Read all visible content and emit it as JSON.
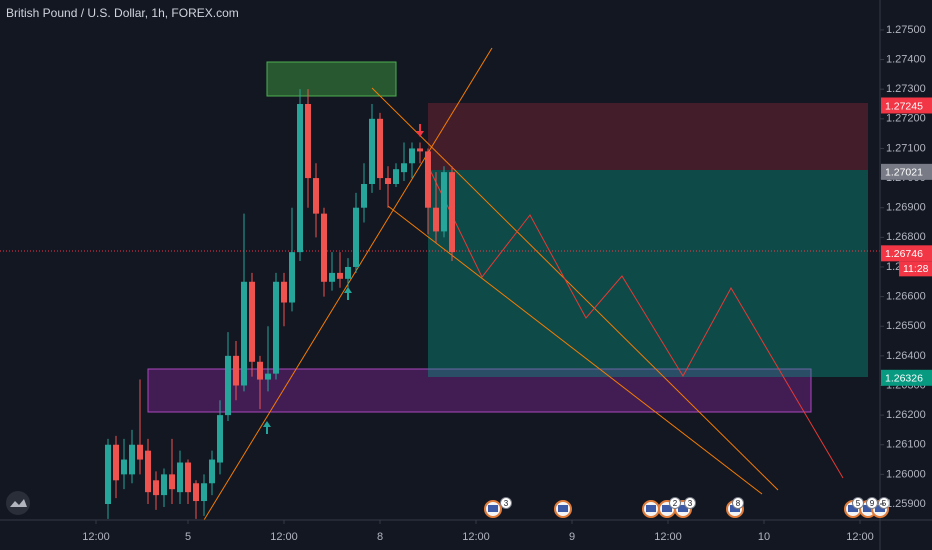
{
  "chart_data": {
    "type": "candlestick",
    "title": "British Pound / U.S. Dollar, 1h, FOREX.com",
    "up_color": "#26a69a",
    "down_color": "#ef5350",
    "x": [
      1.5,
      2.5,
      3.5,
      4.5,
      5.5,
      6.5,
      7.5,
      8.5,
      9.5,
      10.5,
      11.5,
      12.5,
      13.5,
      14.5,
      15.5,
      16.5,
      17.5,
      18.5,
      19.5,
      20.5,
      21.5,
      22.5,
      23.5,
      24.5,
      25.5,
      26.5,
      27.5,
      28.5,
      29.5,
      30.5,
      31.5,
      32.5,
      33.5,
      34.5,
      35.5,
      36.5,
      37.5,
      38.5,
      39.5,
      40.5,
      41.5,
      42.5,
      43.5,
      44.5
    ],
    "open": [
      1.259,
      1.261,
      1.26,
      1.26,
      1.261,
      1.2608,
      1.2598,
      1.2593,
      1.26,
      1.2594,
      1.2604,
      1.2597,
      1.2591,
      1.2597,
      1.2604,
      1.262,
      1.264,
      1.263,
      1.2665,
      1.2638,
      1.2632,
      1.2634,
      1.2665,
      1.2658,
      1.2675,
      1.2725,
      1.27,
      1.2688,
      1.2665,
      1.2668,
      1.2666,
      1.267,
      1.269,
      1.2698,
      1.272,
      1.27,
      1.2698,
      1.2702,
      1.2705,
      1.271,
      1.2709,
      1.269,
      1.2682,
      1.2702
    ],
    "high": [
      1.2612,
      1.2613,
      1.2612,
      1.2615,
      1.2632,
      1.2612,
      1.2601,
      1.2602,
      1.2612,
      1.2608,
      1.2605,
      1.2598,
      1.26,
      1.2608,
      1.2625,
      1.2648,
      1.2645,
      1.2688,
      1.2668,
      1.264,
      1.265,
      1.2668,
      1.2668,
      1.269,
      1.273,
      1.273,
      1.2705,
      1.269,
      1.2675,
      1.2675,
      1.2673,
      1.2695,
      1.2705,
      1.2725,
      1.2722,
      1.2704,
      1.2705,
      1.2712,
      1.2712,
      1.2712,
      1.271,
      1.2702,
      1.2704,
      1.2704
    ],
    "low": [
      1.2585,
      1.2592,
      1.2595,
      1.2597,
      1.26,
      1.259,
      1.2588,
      1.2589,
      1.259,
      1.259,
      1.259,
      1.2585,
      1.2586,
      1.2593,
      1.26,
      1.2618,
      1.2625,
      1.2628,
      1.2633,
      1.2622,
      1.2628,
      1.2632,
      1.265,
      1.2655,
      1.2672,
      1.269,
      1.268,
      1.266,
      1.2662,
      1.2663,
      1.2663,
      1.2668,
      1.2685,
      1.2695,
      1.2696,
      1.269,
      1.2697,
      1.2699,
      1.27,
      1.2705,
      1.2681,
      1.2678,
      1.268,
      1.2672
    ],
    "close": [
      1.261,
      1.2598,
      1.2605,
      1.261,
      1.2605,
      1.2594,
      1.2593,
      1.26,
      1.2595,
      1.2604,
      1.2594,
      1.2591,
      1.2597,
      1.2605,
      1.262,
      1.264,
      1.263,
      1.2665,
      1.2638,
      1.2632,
      1.2634,
      1.2665,
      1.2658,
      1.2675,
      1.2725,
      1.27,
      1.2688,
      1.2665,
      1.2668,
      1.2666,
      1.267,
      1.269,
      1.2698,
      1.272,
      1.27,
      1.2698,
      1.2703,
      1.2705,
      1.271,
      1.2709,
      1.269,
      1.2682,
      1.2702,
      1.2675
    ],
    "xlim": [
      -12,
      98
    ],
    "xticks": [
      {
        "value": 0,
        "label": "12:00"
      },
      {
        "value": 11.5,
        "label": "5"
      },
      {
        "value": 23.5,
        "label": "12:00"
      },
      {
        "value": 35.5,
        "label": "8"
      },
      {
        "value": 47.5,
        "label": "12:00"
      },
      {
        "value": 59.5,
        "label": "9"
      },
      {
        "value": 71.5,
        "label": "12:00"
      },
      {
        "value": 83.5,
        "label": "10"
      },
      {
        "value": 95.5,
        "label": "12:00"
      }
    ],
    "ylim": [
      1.25846,
      1.27601
    ],
    "yticks": [
      {
        "value": 1.259,
        "label": "1.25900"
      },
      {
        "value": 1.26,
        "label": "1.26000"
      },
      {
        "value": 1.261,
        "label": "1.26100"
      },
      {
        "value": 1.262,
        "label": "1.26200"
      },
      {
        "value": 1.263,
        "label": "1.26300"
      },
      {
        "value": 1.264,
        "label": "1.26400"
      },
      {
        "value": 1.265,
        "label": "1.26500"
      },
      {
        "value": 1.266,
        "label": "1.26600"
      },
      {
        "value": 1.267,
        "label": "1.26700"
      },
      {
        "value": 1.268,
        "label": "1.26800"
      },
      {
        "value": 1.269,
        "label": "1.26900"
      },
      {
        "value": 1.27,
        "label": "1.27000"
      },
      {
        "value": 1.271,
        "label": "1.27100"
      },
      {
        "value": 1.272,
        "label": "1.27200"
      },
      {
        "value": 1.273,
        "label": "1.27300"
      },
      {
        "value": 1.274,
        "label": "1.27400"
      },
      {
        "value": 1.275,
        "label": "1.27500"
      }
    ],
    "grid": false,
    "price_labels": [
      {
        "value": 1.27245,
        "color": "#f23645"
      },
      {
        "value": 1.27021,
        "color": "#787b86"
      },
      {
        "value": 1.26746,
        "color": "#f23645"
      },
      {
        "value": 1.26326,
        "color": "#089981"
      }
    ],
    "countdown": "11:28",
    "event_badges": [
      "3",
      "2",
      "3",
      "8",
      "5",
      "9",
      "5"
    ]
  }
}
